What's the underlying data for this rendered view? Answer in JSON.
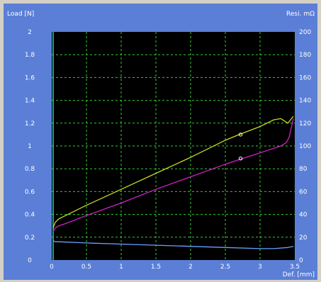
{
  "colors": {
    "outer_border": "#d4d0c8",
    "panel": "#5b7fd6",
    "plot_bg": "#000000",
    "grid": "#2fd02f",
    "axis_text": "#ffffff",
    "load_up": "#c8d820",
    "resi": "#d020c8",
    "load_low": "#6aa0ff",
    "marker": "#ffffff"
  },
  "chart_data": {
    "type": "line",
    "xlabel": "Def. [mm]",
    "ylabel_left": "Load [N]",
    "ylabel_right": "Resi. mΩ",
    "xlim": [
      0,
      3.5
    ],
    "ylim_left": [
      0,
      2
    ],
    "ylim_right": [
      0,
      200
    ],
    "x_ticks": [
      0,
      0.5,
      1,
      1.5,
      2,
      2.5,
      3,
      3.5
    ],
    "x_tick_labels": [
      "0",
      "0.5",
      "1",
      "1.5",
      "2",
      "2.5",
      "3",
      "3.5"
    ],
    "y_left_ticks": [
      0,
      0.2,
      0.4,
      0.6,
      0.8,
      1,
      1.2,
      1.4,
      1.6,
      1.8,
      2
    ],
    "y_left_tick_labels": [
      "0",
      "0.2",
      "0.4",
      "0.6",
      "0.8",
      "1",
      "1.2",
      "1.4",
      "1.6",
      "1.8",
      "2"
    ],
    "y_right_ticks": [
      0,
      20,
      40,
      60,
      80,
      100,
      120,
      140,
      160,
      180,
      200
    ],
    "y_right_tick_labels": [
      "0",
      "20",
      "40",
      "60",
      "80",
      "100",
      "120",
      "140",
      "160",
      "180",
      "200"
    ],
    "grid": true,
    "series": [
      {
        "axis": "left",
        "color": "#c8d820",
        "x": [
          0.02,
          0.05,
          0.1,
          0.2,
          0.5,
          1.0,
          1.5,
          2.0,
          2.5,
          2.7,
          3.0,
          3.2,
          3.3,
          3.4,
          3.48
        ],
        "y": [
          0.28,
          0.33,
          0.36,
          0.39,
          0.48,
          0.62,
          0.76,
          0.9,
          1.05,
          1.1,
          1.17,
          1.23,
          1.24,
          1.2,
          1.26
        ]
      },
      {
        "axis": "left",
        "color": "#d020c8",
        "x": [
          0.02,
          0.05,
          0.1,
          0.2,
          0.5,
          1.0,
          1.5,
          2.0,
          2.5,
          2.7,
          3.0,
          3.3,
          3.38,
          3.42,
          3.48
        ],
        "y": [
          0.25,
          0.28,
          0.3,
          0.32,
          0.39,
          0.5,
          0.62,
          0.73,
          0.84,
          0.88,
          0.94,
          1.0,
          1.03,
          1.08,
          1.24
        ]
      },
      {
        "axis": "left",
        "color": "#6aa0ff",
        "x": [
          0.02,
          0.05,
          0.1,
          0.5,
          1.0,
          1.5,
          2.0,
          2.5,
          3.0,
          3.2,
          3.4,
          3.48
        ],
        "y": [
          0.17,
          0.16,
          0.16,
          0.15,
          0.14,
          0.13,
          0.12,
          0.11,
          0.1,
          0.1,
          0.11,
          0.12
        ]
      }
    ],
    "markers": [
      {
        "x": 2.72,
        "y": 1.1
      },
      {
        "x": 2.72,
        "y": 0.89
      }
    ]
  }
}
